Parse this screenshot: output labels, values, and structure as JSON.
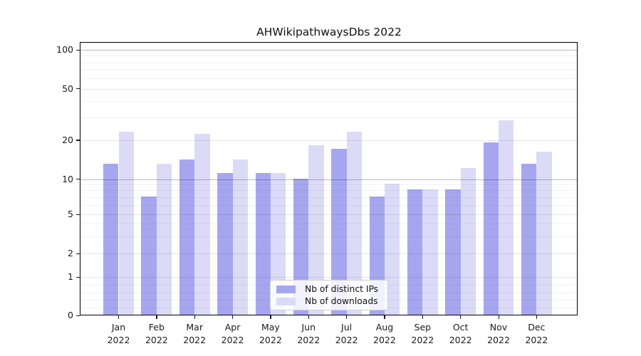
{
  "figure": {
    "title": "AHWikipathwaysDbs 2022"
  },
  "chart_data": {
    "type": "bar",
    "title": "AHWikipathwaysDbs 2022",
    "categories": [
      "Jan 2022",
      "Feb 2022",
      "Mar 2022",
      "Apr 2022",
      "May 2022",
      "Jun 2022",
      "Jul 2022",
      "Aug 2022",
      "Sep 2022",
      "Oct 2022",
      "Nov 2022",
      "Dec 2022"
    ],
    "month_labels": [
      "Jan",
      "Feb",
      "Mar",
      "Apr",
      "May",
      "Jun",
      "Jul",
      "Aug",
      "Sep",
      "Oct",
      "Nov",
      "Dec"
    ],
    "year_label": "2022",
    "series": [
      {
        "name": "Nb of distinct IPs",
        "color": "#a6a6ef",
        "values": [
          13,
          7,
          14,
          11,
          11,
          10,
          17,
          7,
          8,
          8,
          19,
          13
        ]
      },
      {
        "name": "Nb of downloads",
        "color": "#dbdbf8",
        "values": [
          23,
          13,
          22,
          14,
          11,
          18,
          23,
          9,
          8,
          12,
          28,
          16
        ]
      }
    ],
    "y_axis": {
      "scale": "log-like with 0 baseline",
      "tick_values": [
        100,
        50,
        20,
        10,
        5,
        2,
        1,
        0
      ],
      "tick_labels": [
        "100",
        "50",
        "20",
        "10",
        "5",
        "2",
        "1",
        "0"
      ],
      "ylim": [
        0,
        113
      ],
      "grid": "on"
    },
    "legend": {
      "position": "bottom-center",
      "entries": [
        "Nb of distinct IPs",
        "Nb of downloads"
      ]
    }
  }
}
